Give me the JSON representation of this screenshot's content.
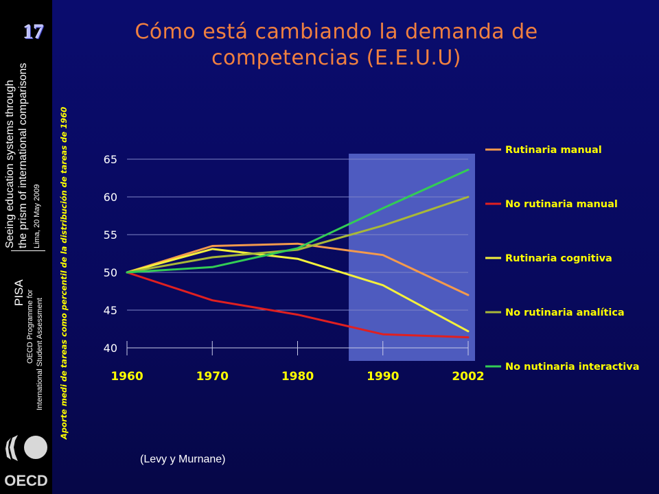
{
  "sidebar": {
    "pisa": "PISA",
    "programme_line1": "OECD Programme for",
    "programme_line2": "International Student Assessment",
    "seeing_line1": "Seeing education systems through",
    "seeing_line2": "the prism of international comparisons",
    "place_date": "Lima, 20 May 2009",
    "logo_text": "OECD"
  },
  "slide_number": "17",
  "source_note": "(Levy y Murnane)",
  "colors": {
    "title": "#f08040",
    "axis_text": "#ffff00",
    "highlight": "#5a6ad0",
    "background": "#0a0c6e"
  },
  "chart_data": {
    "type": "line",
    "title_line1": "Cómo está cambiando la demanda de",
    "title_line2": "competencias (E.E.U.U)",
    "ylabel": "Aporte  medi de tareas como percentil de la distribución de tareas de 1960",
    "xlabel": "",
    "categories": [
      "1960",
      "1970",
      "1980",
      "1990",
      "2002"
    ],
    "yticks": [
      40,
      45,
      50,
      55,
      60,
      65
    ],
    "ylim": [
      40,
      65
    ],
    "grid": true,
    "legend_position": "right",
    "highlight_range": [
      "1986",
      "2002"
    ],
    "series": [
      {
        "name": "Rutinaria manual",
        "color": "#f49a4c",
        "values": [
          50,
          53.5,
          53.8,
          52.3,
          47.0
        ]
      },
      {
        "name": "No rutinaria manual",
        "color": "#e02020",
        "values": [
          50,
          46.3,
          44.4,
          41.8,
          41.4
        ]
      },
      {
        "name": "Rutinaria cognitiva",
        "color": "#f4f03c",
        "values": [
          50,
          53.1,
          51.8,
          48.3,
          42.2
        ]
      },
      {
        "name": "No rutinaria analítica",
        "color": "#a8b838",
        "values": [
          50,
          52.0,
          53.0,
          56.2,
          60.0
        ]
      },
      {
        "name": "No nutinaria interactiva",
        "color": "#33cc55",
        "values": [
          50,
          50.7,
          53.2,
          58.5,
          63.6
        ]
      }
    ]
  }
}
